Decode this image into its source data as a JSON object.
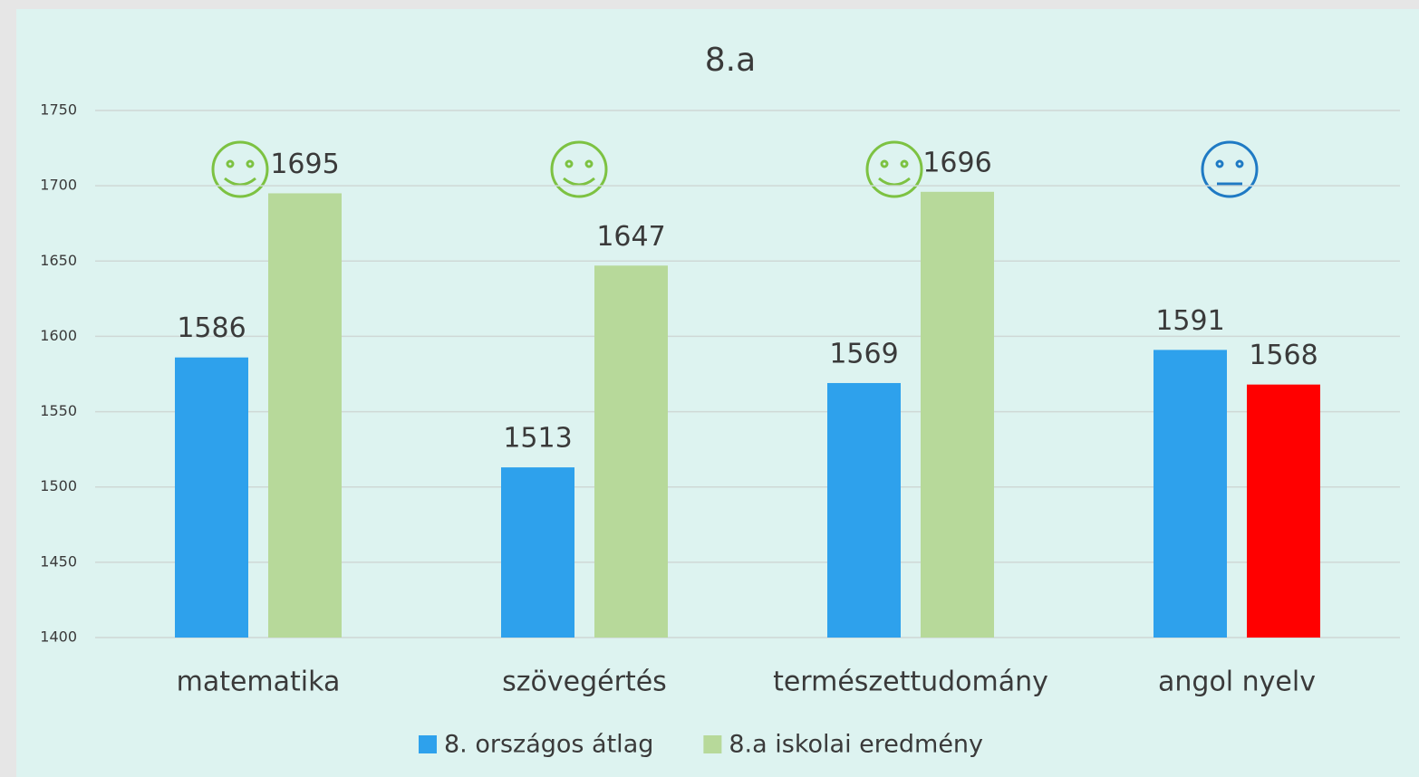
{
  "chart_data": {
    "type": "bar",
    "title": "8.a",
    "categories": [
      "matematika",
      "szövegértés",
      "természettudomány",
      "angol nyelv"
    ],
    "series": [
      {
        "name": "8. országos átlag",
        "color": "#2ea1ec",
        "values": [
          1586,
          1513,
          1569,
          1591
        ]
      },
      {
        "name": "8.a iskolai eredmény",
        "color": "#b7d99a",
        "colors": [
          "#b7d99a",
          "#b7d99a",
          "#b7d99a",
          "#ff0000"
        ],
        "values": [
          1695,
          1647,
          1696,
          1568
        ]
      }
    ],
    "ylim": [
      1400,
      1750
    ],
    "yticks": [
      1400,
      1450,
      1500,
      1550,
      1600,
      1650,
      1700,
      1750
    ],
    "grid": true,
    "legend": "bottom"
  }
}
